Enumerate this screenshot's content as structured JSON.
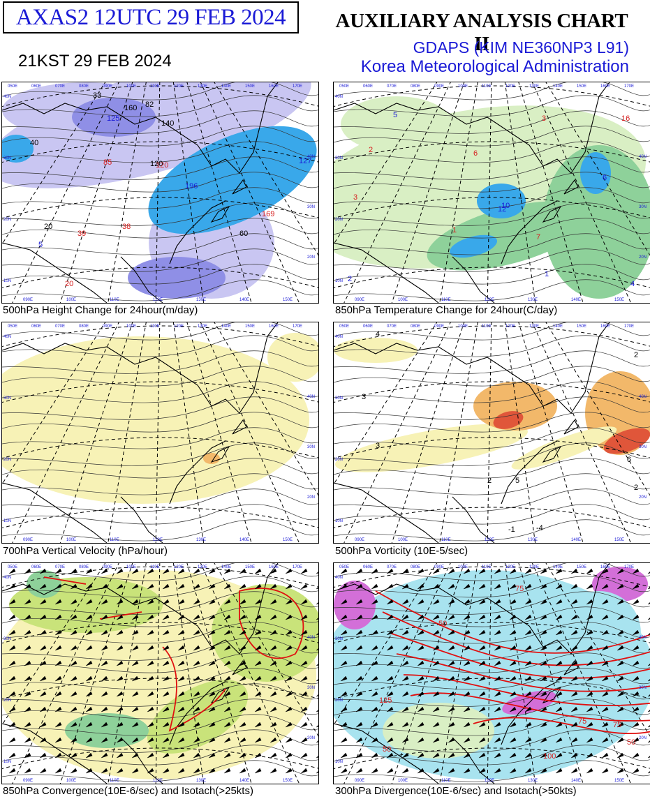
{
  "header": {
    "product_id": "AXAS2  12UTC 29 FEB 2024",
    "local_time": "21KST 29 FEB 2024",
    "chart_title": "AUXILIARY ANALYSIS CHART II",
    "model": "GDAPS (KIM NE360NP3 L91)",
    "agency": "Korea Meteorological Administration"
  },
  "panels": [
    {
      "caption": "500hPa Height Change for 24hour(m/day)",
      "labels": [
        {
          "text": "33",
          "color": "#000"
        },
        {
          "text": "160",
          "color": "#000"
        },
        {
          "text": "82",
          "color": "#000"
        },
        {
          "text": "125",
          "color": "#1a1ad6"
        },
        {
          "text": "140",
          "color": "#000"
        },
        {
          "text": "120",
          "color": "#000"
        },
        {
          "text": "85",
          "color": "#d62020"
        },
        {
          "text": "120",
          "color": "#d62020"
        },
        {
          "text": "196",
          "color": "#1a1ad6"
        },
        {
          "text": "169",
          "color": "#d62020"
        },
        {
          "text": "39",
          "color": "#d62020"
        },
        {
          "text": "38",
          "color": "#d62020"
        },
        {
          "text": "5",
          "color": "#1a1ad6"
        },
        {
          "text": "20",
          "color": "#d62020"
        },
        {
          "text": "60",
          "color": "#000"
        },
        {
          "text": "20",
          "color": "#000"
        },
        {
          "text": "40",
          "color": "#000"
        },
        {
          "text": "127",
          "color": "#1a1ad6"
        }
      ]
    },
    {
      "caption": "850hPa Temperature Change for 24hour(C/day)",
      "labels": [
        {
          "text": "16",
          "color": "#d62020"
        },
        {
          "text": "2",
          "color": "#d62020"
        },
        {
          "text": "6",
          "color": "#d62020"
        },
        {
          "text": "3",
          "color": "#d62020"
        },
        {
          "text": "3",
          "color": "#d62020"
        },
        {
          "text": "10",
          "color": "#1a1ad6"
        },
        {
          "text": "12",
          "color": "#1a1ad6"
        },
        {
          "text": "1",
          "color": "#d62020"
        },
        {
          "text": "2",
          "color": "#1a1ad6"
        },
        {
          "text": "7",
          "color": "#d62020"
        },
        {
          "text": "1",
          "color": "#1a1ad6"
        },
        {
          "text": "4",
          "color": "#1a1ad6"
        },
        {
          "text": "6",
          "color": "#1a1ad6"
        },
        {
          "text": "5",
          "color": "#1a1ad6"
        }
      ]
    },
    {
      "caption": "700hPa Vertical Velocity (hPa/hour)",
      "labels": []
    },
    {
      "caption": "500hPa Vorticity (10E-5/sec)",
      "labels": [
        {
          "text": "4",
          "color": "#000"
        },
        {
          "text": "3",
          "color": "#000"
        },
        {
          "text": "2",
          "color": "#000"
        },
        {
          "text": "-1",
          "color": "#000"
        },
        {
          "text": "-4",
          "color": "#000"
        },
        {
          "text": "2",
          "color": "#000"
        },
        {
          "text": "5",
          "color": "#000"
        },
        {
          "text": "6",
          "color": "#000"
        },
        {
          "text": "3",
          "color": "#000"
        },
        {
          "text": "2",
          "color": "#000"
        }
      ]
    },
    {
      "caption": "850hPa Convergence(10E-6/sec) and Isotach(>25kts)",
      "labels": []
    },
    {
      "caption": "300hPa Divergence(10E-6/sec) and Isotach(>50kts)",
      "labels": [
        {
          "text": "75",
          "color": "#d62020"
        },
        {
          "text": "50",
          "color": "#d62020"
        },
        {
          "text": "125",
          "color": "#d62020"
        },
        {
          "text": "75",
          "color": "#d62020"
        },
        {
          "text": "50",
          "color": "#d62020"
        },
        {
          "text": "100",
          "color": "#d62020"
        },
        {
          "text": "75",
          "color": "#d62020"
        },
        {
          "text": "50",
          "color": "#d62020"
        }
      ]
    }
  ],
  "top_axis_labels": [
    "050E",
    "060E",
    "070E",
    "080E",
    "090E",
    "100E",
    "110E",
    "120E",
    "130E",
    "140E",
    "150E",
    "160E",
    "170E"
  ],
  "bottom_axis_labels": [
    "090E",
    "100E",
    "110E",
    "120E",
    "130E",
    "140E",
    "150E"
  ],
  "lat_labels_left": [
    "40N",
    "30N",
    "20N",
    "10N"
  ],
  "lat_labels_right": [
    "40N",
    "30N",
    "20N",
    "10N"
  ],
  "colors": {
    "text_blue": "#1a1ad6",
    "text_red": "#d62020",
    "shade_blue_light": "#c9c6f2",
    "shade_blue_mid": "#8f8fe6",
    "shade_cyan": "#39a8ea",
    "shade_green_light": "#d9efc4",
    "shade_green_mid": "#8ed19a",
    "shade_yellow": "#f7f2b6",
    "shade_orange": "#f2b86a",
    "shade_red": "#e0563a",
    "shade_lime": "#c9e37a",
    "shade_aqua": "#a8e3ef",
    "shade_magenta": "#d36fd8",
    "isotach_red": "#e01010"
  }
}
